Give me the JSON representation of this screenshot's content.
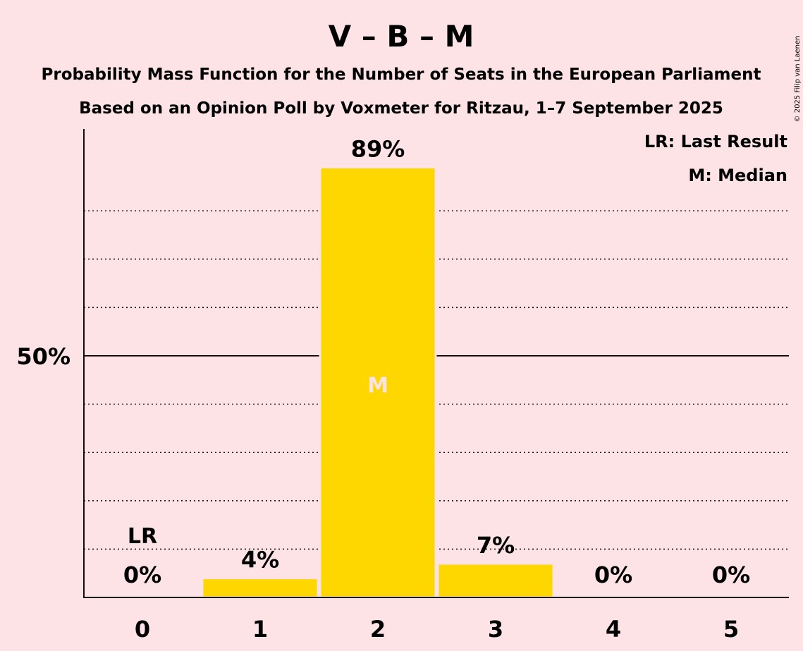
{
  "chart_data": {
    "type": "bar",
    "title": "V – B – M",
    "subtitle_1": "Probability Mass Function for the Number of Seats in the European Parliament",
    "subtitle_2": "Based on an Opinion Poll by Voxmeter for Ritzau, 1–7 September 2025",
    "categories": [
      "0",
      "1",
      "2",
      "3",
      "4",
      "5"
    ],
    "values": [
      0,
      4,
      89,
      7,
      0,
      0
    ],
    "value_labels": [
      "0%",
      "4%",
      "89%",
      "7%",
      "0%",
      "0%"
    ],
    "ylim": [
      0,
      97
    ],
    "y_tick_label": "50%",
    "y_tick_value": 50,
    "gridlines": [
      10,
      20,
      30,
      40,
      60,
      70,
      80
    ],
    "last_result_category": "0",
    "last_result_marker": "LR",
    "median_category": "2",
    "median_marker": "M",
    "legend": [
      "LR: Last Result",
      "M: Median"
    ],
    "legend_position": "top-right",
    "bar_color": "#ffd700",
    "background": "#fde2e6",
    "copyright": "© 2025 Filip van Laenen"
  }
}
